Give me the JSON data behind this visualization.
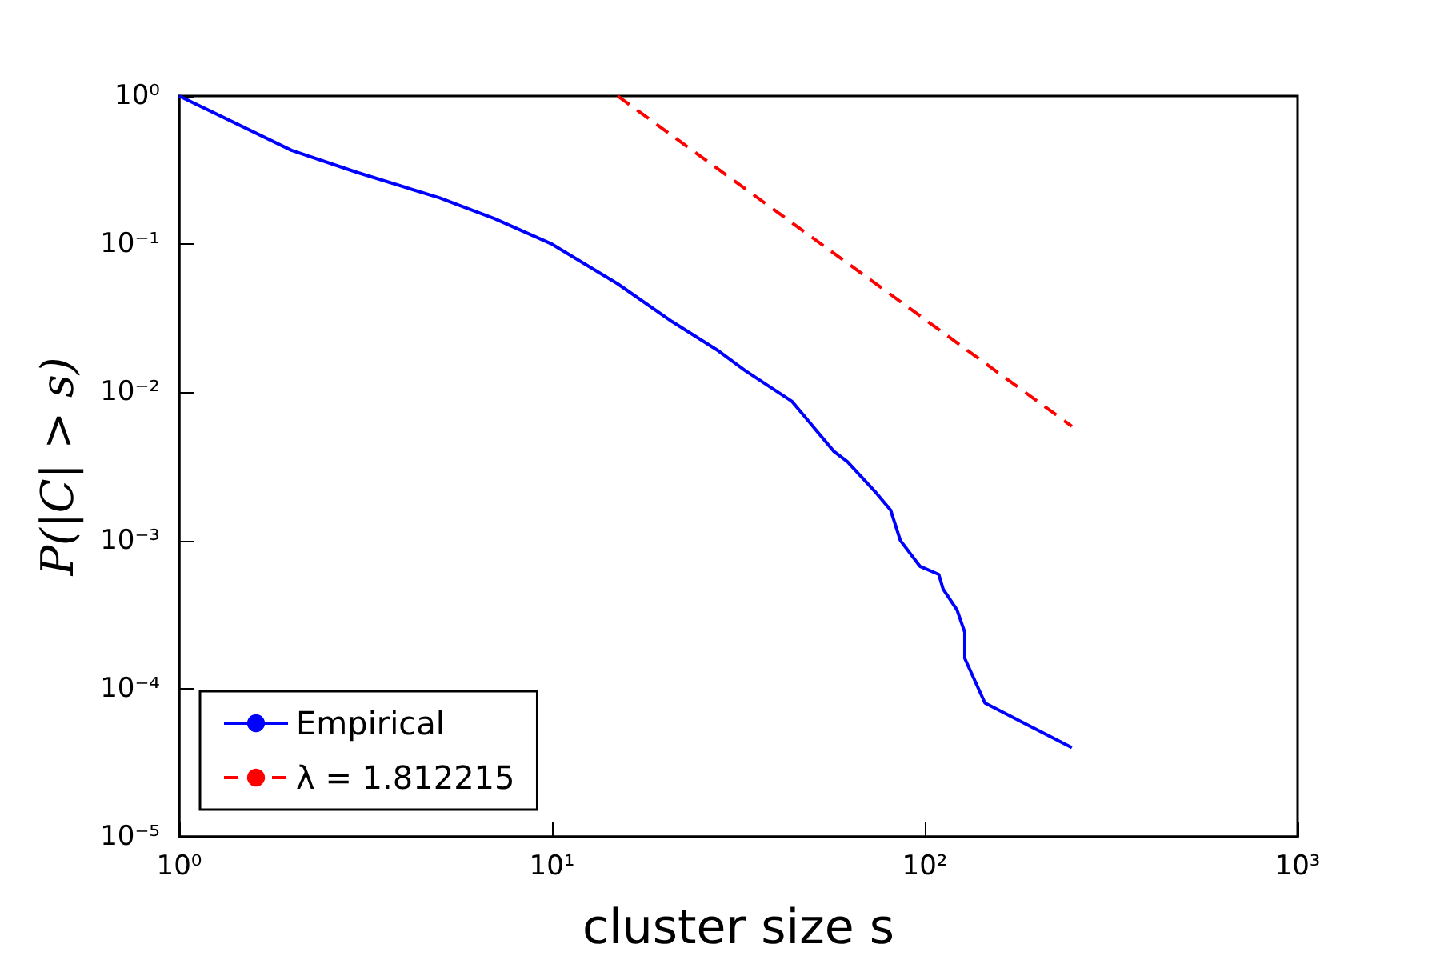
{
  "chart_data": {
    "type": "line",
    "xlabel": "cluster size s",
    "ylabel": "P(|C| > s)",
    "log": "xy",
    "grid": false,
    "legend": "bottom left",
    "line_style": "solid",
    "marker": "none",
    "xlim": [
      1,
      1000
    ],
    "ylim": [
      1e-05,
      1
    ],
    "xticks": [
      {
        "value": 1,
        "label": "10⁰"
      },
      {
        "value": 10,
        "label": "10¹"
      },
      {
        "value": 100,
        "label": "10²"
      },
      {
        "value": 1000,
        "label": "10³"
      }
    ],
    "yticks": [
      {
        "value": 1e-05,
        "label": "10⁻⁵"
      },
      {
        "value": 0.0001,
        "label": "10⁻⁴"
      },
      {
        "value": 0.001,
        "label": "10⁻³"
      },
      {
        "value": 0.01,
        "label": "10⁻²"
      },
      {
        "value": 0.1,
        "label": "10⁻¹"
      },
      {
        "value": 1,
        "label": "10⁰"
      }
    ],
    "series": [
      {
        "name": "Empirical",
        "color": "#0000ff",
        "x": [
          1,
          2,
          3,
          5,
          7,
          10,
          15,
          21,
          28,
          33,
          44,
          57,
          62,
          74,
          81,
          86,
          97,
          109,
          112,
          122,
          128,
          128,
          145,
          248
        ],
        "values": [
          1,
          0.43,
          0.305,
          0.205,
          0.149,
          0.1,
          0.054,
          0.03,
          0.019,
          0.014,
          0.0087,
          0.004,
          0.0034,
          0.0021,
          0.0016,
          0.001,
          0.00067,
          0.00059,
          0.00047,
          0.00034,
          0.00024,
          0.00016,
          8e-05,
          4e-05
        ]
      },
      {
        "name": "λ = 1.812215",
        "color": "#ff0000",
        "line_style": "dashed",
        "x": [
          15,
          248
        ],
        "values": [
          1,
          0.0059
        ]
      }
    ]
  }
}
